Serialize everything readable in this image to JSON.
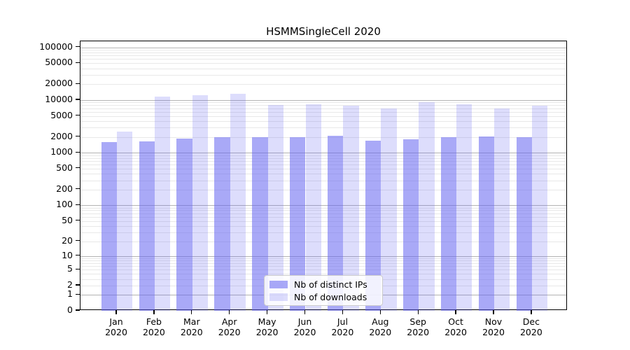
{
  "chart_data": {
    "type": "bar",
    "title": "HSMMSingleCell 2020",
    "months": [
      "Jan",
      "Feb",
      "Mar",
      "Apr",
      "May",
      "Jun",
      "Jul",
      "Aug",
      "Sep",
      "Oct",
      "Nov",
      "Dec"
    ],
    "year_label": "2020",
    "series": [
      {
        "name": "Nb of distinct IPs",
        "color": "rgba(99,99,240,0.55)",
        "values": [
          1600,
          1650,
          1850,
          1950,
          2000,
          2000,
          2080,
          1700,
          1800,
          1950,
          2050,
          1950
        ]
      },
      {
        "name": "Nb of downloads",
        "color": "rgba(99,99,240,0.22)",
        "values": [
          2500,
          11800,
          12300,
          13100,
          8000,
          8200,
          7900,
          6900,
          9100,
          8400,
          7000,
          7800
        ]
      }
    ],
    "y_axis": {
      "scale": "log1p",
      "ticks": [
        0,
        1,
        2,
        5,
        10,
        20,
        50,
        100,
        200,
        500,
        1000,
        2000,
        5000,
        10000,
        20000,
        50000,
        100000
      ],
      "range_top": 100000
    },
    "grid": {
      "major_color": "#b3b3b3",
      "minor_color": "#e8e8e8",
      "major": "on",
      "minor": "on"
    },
    "legend": {
      "position": "lower center"
    }
  }
}
